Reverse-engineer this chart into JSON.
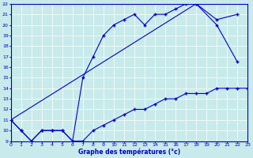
{
  "bg_color": "#c8eaea",
  "line_color": "#0000cc",
  "xlabel": "Graphe des températures (°c)",
  "xmin": 0,
  "xmax": 23,
  "ymin": 9,
  "ymax": 22,
  "yticks": [
    9,
    10,
    11,
    12,
    13,
    14,
    15,
    16,
    17,
    18,
    19,
    20,
    21,
    22
  ],
  "xticks": [
    0,
    1,
    2,
    3,
    4,
    5,
    6,
    7,
    8,
    9,
    10,
    11,
    12,
    13,
    14,
    15,
    16,
    17,
    18,
    19,
    20,
    21,
    22,
    23
  ],
  "line1_x": [
    0,
    1,
    2,
    3,
    4,
    5,
    6,
    7,
    8,
    9,
    10,
    11,
    12,
    13,
    14,
    15,
    16,
    17,
    18,
    19,
    20,
    21,
    22,
    23
  ],
  "line1_y": [
    11,
    10,
    9,
    10,
    10,
    10,
    9,
    9,
    10,
    10.5,
    11,
    11.5,
    12,
    12,
    12.5,
    13,
    13,
    13.5,
    13.5,
    13.5,
    14,
    14,
    14,
    14
  ],
  "line2_x": [
    0,
    1,
    2,
    3,
    4,
    5,
    6,
    7,
    8,
    9,
    10,
    11,
    12,
    13,
    14,
    15,
    16,
    17,
    18,
    20,
    22
  ],
  "line2_y": [
    11,
    10,
    9,
    10,
    10,
    10,
    9,
    15,
    17,
    19,
    20,
    20.5,
    21,
    20,
    21,
    21,
    21.5,
    22,
    22,
    20,
    16.5
  ],
  "line3_x": [
    0,
    18,
    20,
    22
  ],
  "line3_y": [
    11,
    22,
    20.5,
    21
  ]
}
